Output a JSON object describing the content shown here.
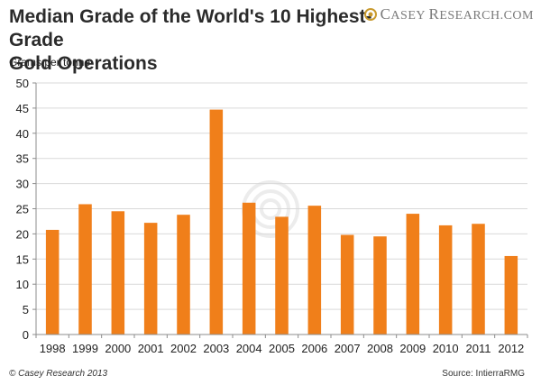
{
  "header": {
    "title_line1": "Median Grade of the World's 10 Highest-Grade",
    "title_line2": "Gold Operations"
  },
  "logo": {
    "text_c": "C",
    "text_asey": "ASEY ",
    "text_r": "R",
    "text_rest": "ESEARCH.COM"
  },
  "footer": {
    "copyright": "© Casey Research 2013",
    "source": "Source: IntierraRMG"
  },
  "colors": {
    "bar": "#F07F1A",
    "grid": "#d9d9d9",
    "axis": "#8c8c8c"
  },
  "chart_data": {
    "type": "bar",
    "title": "Median Grade of the World's 10 Highest-Grade Gold Operations",
    "xlabel": "",
    "ylabel": "Grams per tonne",
    "ylim": [
      0,
      50
    ],
    "yticks": [
      0,
      5,
      10,
      15,
      20,
      25,
      30,
      35,
      40,
      45,
      50
    ],
    "grid": true,
    "categories": [
      "1998",
      "1999",
      "2000",
      "2001",
      "2002",
      "2003",
      "2004",
      "2005",
      "2006",
      "2007",
      "2008",
      "2009",
      "2010",
      "2011",
      "2012"
    ],
    "values": [
      20.8,
      25.9,
      24.5,
      22.2,
      23.8,
      44.7,
      26.2,
      23.4,
      25.6,
      19.8,
      19.5,
      24.0,
      21.7,
      22.0,
      15.6
    ]
  }
}
